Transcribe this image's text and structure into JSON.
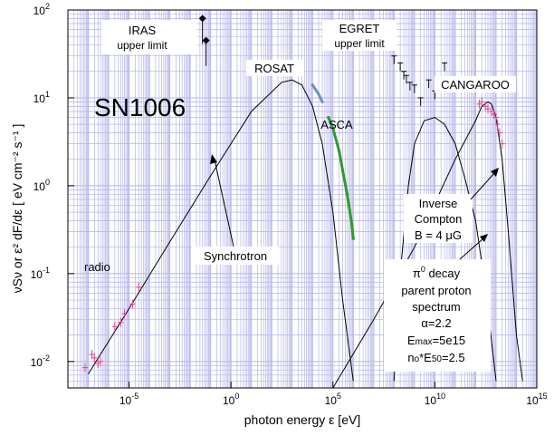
{
  "chart_data": {
    "type": "scatter",
    "title": "SN1006",
    "xlabel": "photon energy ε [eV]",
    "ylabel": "νSν  or  ε² dF/dε [ eV cm⁻² s⁻¹ ]",
    "xscale": "log",
    "yscale": "log",
    "xlim": [
      1e-08,
      1000000000000000.0
    ],
    "ylim": [
      0.005,
      100
    ],
    "grid": true,
    "colors": {
      "grid": "#b4b4ec",
      "frame": "#000000",
      "radio": "#e0408c",
      "rosat": "#6f8fbf",
      "asca": "#2f9a2f",
      "cangaroo": "#e0408c"
    },
    "x_ticks": [
      {
        "value": 1e-05,
        "base": "10",
        "exp": "-5"
      },
      {
        "value": 1,
        "base": "10",
        "exp": "0"
      },
      {
        "value": 100000.0,
        "base": "10",
        "exp": "5"
      },
      {
        "value": 10000000000.0,
        "base": "10",
        "exp": "10"
      },
      {
        "value": 1000000000000000.0,
        "base": "10",
        "exp": "15"
      }
    ],
    "y_ticks": [
      {
        "value": 0.01,
        "base": "10",
        "exp": "-2"
      },
      {
        "value": 0.1,
        "base": "10",
        "exp": "-1"
      },
      {
        "value": 1,
        "base": "10",
        "exp": "0"
      },
      {
        "value": 10,
        "base": "10",
        "exp": "1"
      },
      {
        "value": 100,
        "base": "10",
        "exp": "2"
      }
    ],
    "curves": [
      {
        "name": "Synchrotron",
        "points": [
          [
            1e-07,
            0.0072
          ],
          [
            1e-05,
            0.04
          ],
          [
            0.001,
            0.23
          ],
          [
            0.1,
            1.3
          ],
          [
            10,
            7
          ],
          [
            300,
            15
          ],
          [
            1000,
            16
          ],
          [
            3000,
            14
          ],
          [
            10000,
            8
          ],
          [
            30000,
            3
          ],
          [
            100000,
            0.5
          ],
          [
            300000,
            0.05
          ],
          [
            1000000,
            0.006
          ]
        ]
      },
      {
        "name": "Inverse Compton",
        "points": [
          [
            100000000.0,
            0.006
          ],
          [
            200000000.0,
            0.1
          ],
          [
            500000000.0,
            1
          ],
          [
            1000000000.0,
            3
          ],
          [
            3000000000.0,
            5.5
          ],
          [
            10000000000.0,
            6
          ],
          [
            30000000000.0,
            5
          ],
          [
            100000000000.0,
            3
          ],
          [
            300000000000.0,
            1.2
          ],
          [
            1000000000000.0,
            0.4
          ],
          [
            3000000000000.0,
            0.07
          ],
          [
            10000000000000.0,
            0.006
          ]
        ]
      },
      {
        "name": "pi0 decay",
        "points": [
          [
            100000.0,
            0.005
          ],
          [
            10000000.0,
            0.03
          ],
          [
            1000000000.0,
            0.2
          ],
          [
            100000000000.0,
            2
          ],
          [
            1000000000000.0,
            5.5
          ],
          [
            2000000000000.0,
            8
          ],
          [
            4000000000000.0,
            9
          ],
          [
            6000000000000.0,
            8.5
          ],
          [
            10000000000000.0,
            6
          ],
          [
            20000000000000.0,
            2
          ],
          [
            40000000000000.0,
            0.3
          ],
          [
            100000000000000.0,
            0.02
          ],
          [
            200000000000000.0,
            0.006
          ]
        ]
      }
    ],
    "series": [
      {
        "name": "radio",
        "points": [
          [
            7e-08,
            0.0085
          ],
          [
            1.5e-07,
            0.012
          ],
          [
            2e-07,
            0.011
          ],
          [
            3e-07,
            0.0095
          ],
          [
            4e-07,
            0.01
          ],
          [
            2e-06,
            0.025
          ],
          [
            4e-06,
            0.028
          ],
          [
            6e-06,
            0.035
          ],
          [
            1.5e-05,
            0.045
          ],
          [
            3e-05,
            0.07
          ]
        ]
      },
      {
        "name": "ROSAT",
        "points": [
          [
            10000,
            14
          ],
          [
            20000,
            11
          ],
          [
            30000,
            9
          ]
        ]
      },
      {
        "name": "ASCA",
        "points": [
          [
            60000,
            6
          ],
          [
            100000,
            4.5
          ],
          [
            200000,
            2.5
          ],
          [
            300000,
            1.5
          ],
          [
            500000,
            0.8
          ],
          [
            800000,
            0.4
          ],
          [
            1000000,
            0.25
          ]
        ]
      },
      {
        "name": "EGRET upper limit",
        "points": [
          [
            100000000.0,
            30
          ],
          [
            200000000.0,
            25
          ],
          [
            300000000.0,
            20
          ],
          [
            400000000.0,
            18
          ],
          [
            600000000.0,
            15
          ],
          [
            1000000000.0,
            14
          ],
          [
            2000000000.0,
            10
          ],
          [
            5000000000.0,
            16
          ],
          [
            10000000000.0,
            12
          ],
          [
            30000000000.0,
            25
          ]
        ]
      },
      {
        "name": "CANGAROO",
        "points": [
          [
            1500000000000.0,
            8.5
          ],
          [
            2000000000000.0,
            9
          ],
          [
            3000000000000.0,
            8
          ],
          [
            4000000000000.0,
            7.5
          ],
          [
            6000000000000.0,
            7
          ],
          [
            8000000000000.0,
            6.5
          ],
          [
            10000000000000.0,
            6
          ],
          [
            12000000000000.0,
            5
          ],
          [
            15000000000000.0,
            4
          ],
          [
            20000000000000.0,
            3
          ]
        ]
      },
      {
        "name": "IRAS upper limit",
        "points": [
          [
            0.04,
            80
          ],
          [
            0.06,
            45
          ]
        ]
      }
    ],
    "labels": {
      "title": "SN1006",
      "radio": "radio",
      "iras": "IRAS",
      "iras_sub": "upper limit",
      "rosat": "ROSAT",
      "asca": "ASCA",
      "egret": "EGRET",
      "egret_sub": "upper limit",
      "cangaroo": "CANGAROO",
      "synchrotron": "Synchrotron",
      "ic1": "Inverse",
      "ic2": "Compton",
      "ic3": "B = 4 μG",
      "pi0_pre": "π",
      "pi0_sup": "0",
      "pi0_post": " decay",
      "pp1": "parent proton",
      "pp2": "spectrum",
      "alpha": "α=2.2",
      "emax_a": "E",
      "emax_b": "max",
      "emax_c": "=5e15",
      "n0_a": "n",
      "n0_b": "o",
      "n0_c": "*E",
      "n0_d": "50",
      "n0_e": "=2.5"
    }
  }
}
